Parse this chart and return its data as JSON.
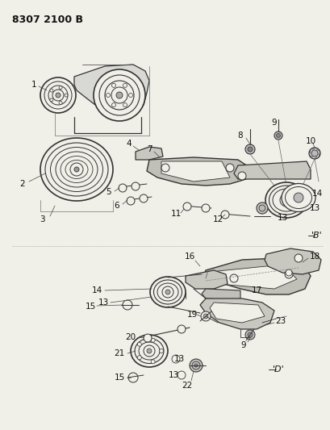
{
  "title_code": "8307 2100 B",
  "bg": "#f0efe8",
  "lc": "#333333",
  "tc": "#111111",
  "label_B": "'B'",
  "label_D": "'D'",
  "figsize": [
    4.1,
    5.33
  ],
  "dpi": 100
}
